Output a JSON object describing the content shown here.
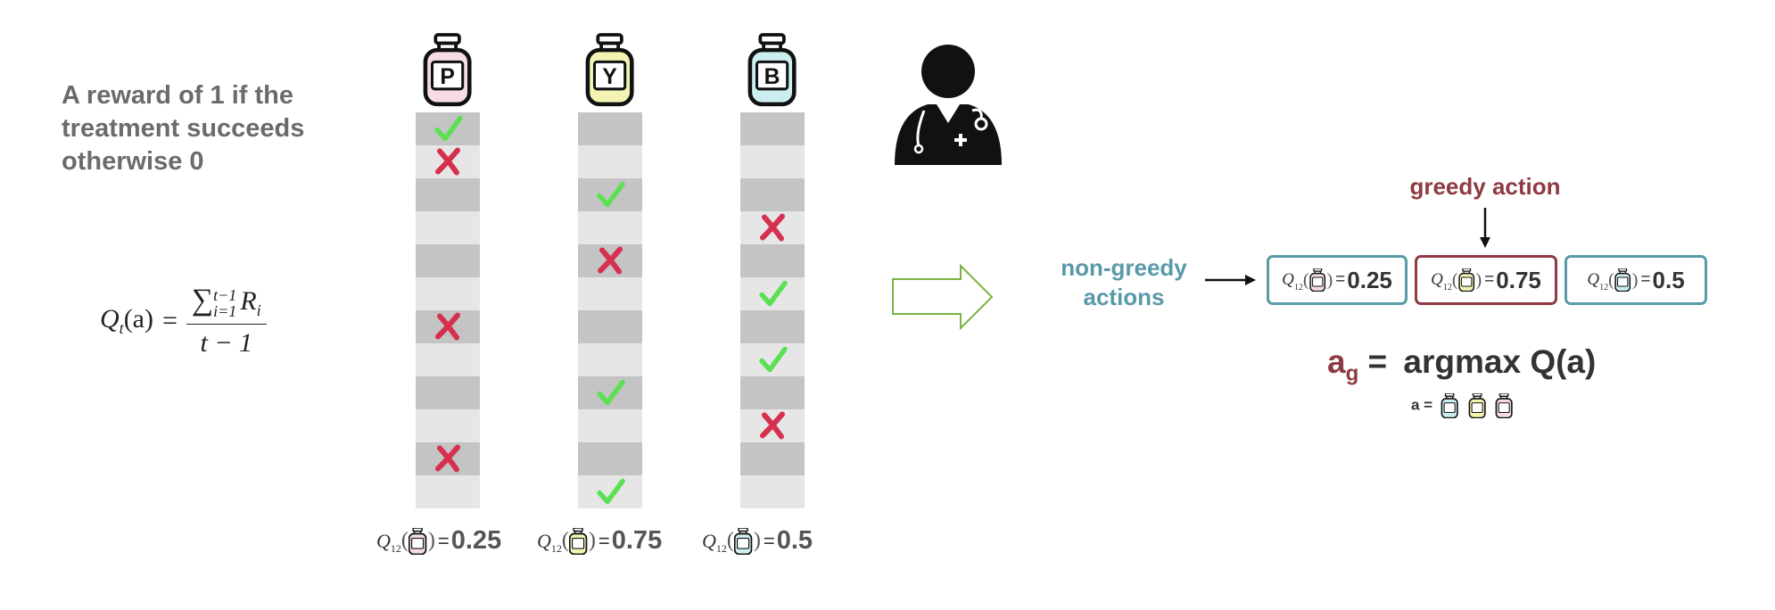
{
  "reward_text": {
    "line1": "A reward of 1 if the",
    "line2": "treatment succeeds",
    "line3": "otherwise 0"
  },
  "formula": {
    "lhs": "Q",
    "lhs_sub": "t",
    "lhs_arg": "(a)",
    "sum_symbol": "∑",
    "sum_upper": "t−1",
    "sum_lower": "i=1",
    "term": "R",
    "term_sub": "i",
    "denominator": "t − 1"
  },
  "colors": {
    "cell_dark": "#c4c4c4",
    "cell_light": "#e6e6e6",
    "check": "#5be053",
    "cross": "#d6304f",
    "teal": "#5a9aa8",
    "maroon": "#8e3a43",
    "bottle_P": "#f7dce8",
    "bottle_Y": "#f3f3b3",
    "bottle_B": "#cdeef0",
    "arrow_outline": "#7cb342"
  },
  "icons": {
    "check": "checkmark-icon",
    "cross": "cross-icon",
    "doctor": "doctor-icon",
    "bottle": "medicine-bottle-icon"
  },
  "treatments": [
    {
      "letter": "P",
      "outcomes": [
        "check",
        "cross",
        "",
        "",
        "",
        "",
        "cross",
        "",
        "",
        "",
        "cross",
        ""
      ],
      "q_symbol": "Q",
      "q_sub": "12",
      "q_value": "0.25"
    },
    {
      "letter": "Y",
      "outcomes": [
        "",
        "",
        "check",
        "",
        "cross",
        "",
        "",
        "",
        "check",
        "",
        "",
        "check"
      ],
      "q_symbol": "Q",
      "q_sub": "12",
      "q_value": "0.75"
    },
    {
      "letter": "B",
      "outcomes": [
        "",
        "",
        "",
        "cross",
        "",
        "check",
        "",
        "check",
        "",
        "cross",
        "",
        ""
      ],
      "q_symbol": "Q",
      "q_sub": "12",
      "q_value": "0.5"
    }
  ],
  "greedy": {
    "greedy_label": "greedy action",
    "nongreedy_label_line1": "non-greedy",
    "nongreedy_label_line2": "actions",
    "boxes": [
      {
        "letter": "P",
        "q_value": "0.25",
        "role": "non-greedy"
      },
      {
        "letter": "Y",
        "q_value": "0.75",
        "role": "greedy"
      },
      {
        "letter": "B",
        "q_value": "0.5",
        "role": "non-greedy"
      }
    ]
  },
  "argmax": {
    "a": "a",
    "g": "g",
    "equals": "=",
    "expression": "argmax Q(a)",
    "a_equals": "a =",
    "mini_bottles": [
      "B",
      "Y",
      "P"
    ]
  }
}
